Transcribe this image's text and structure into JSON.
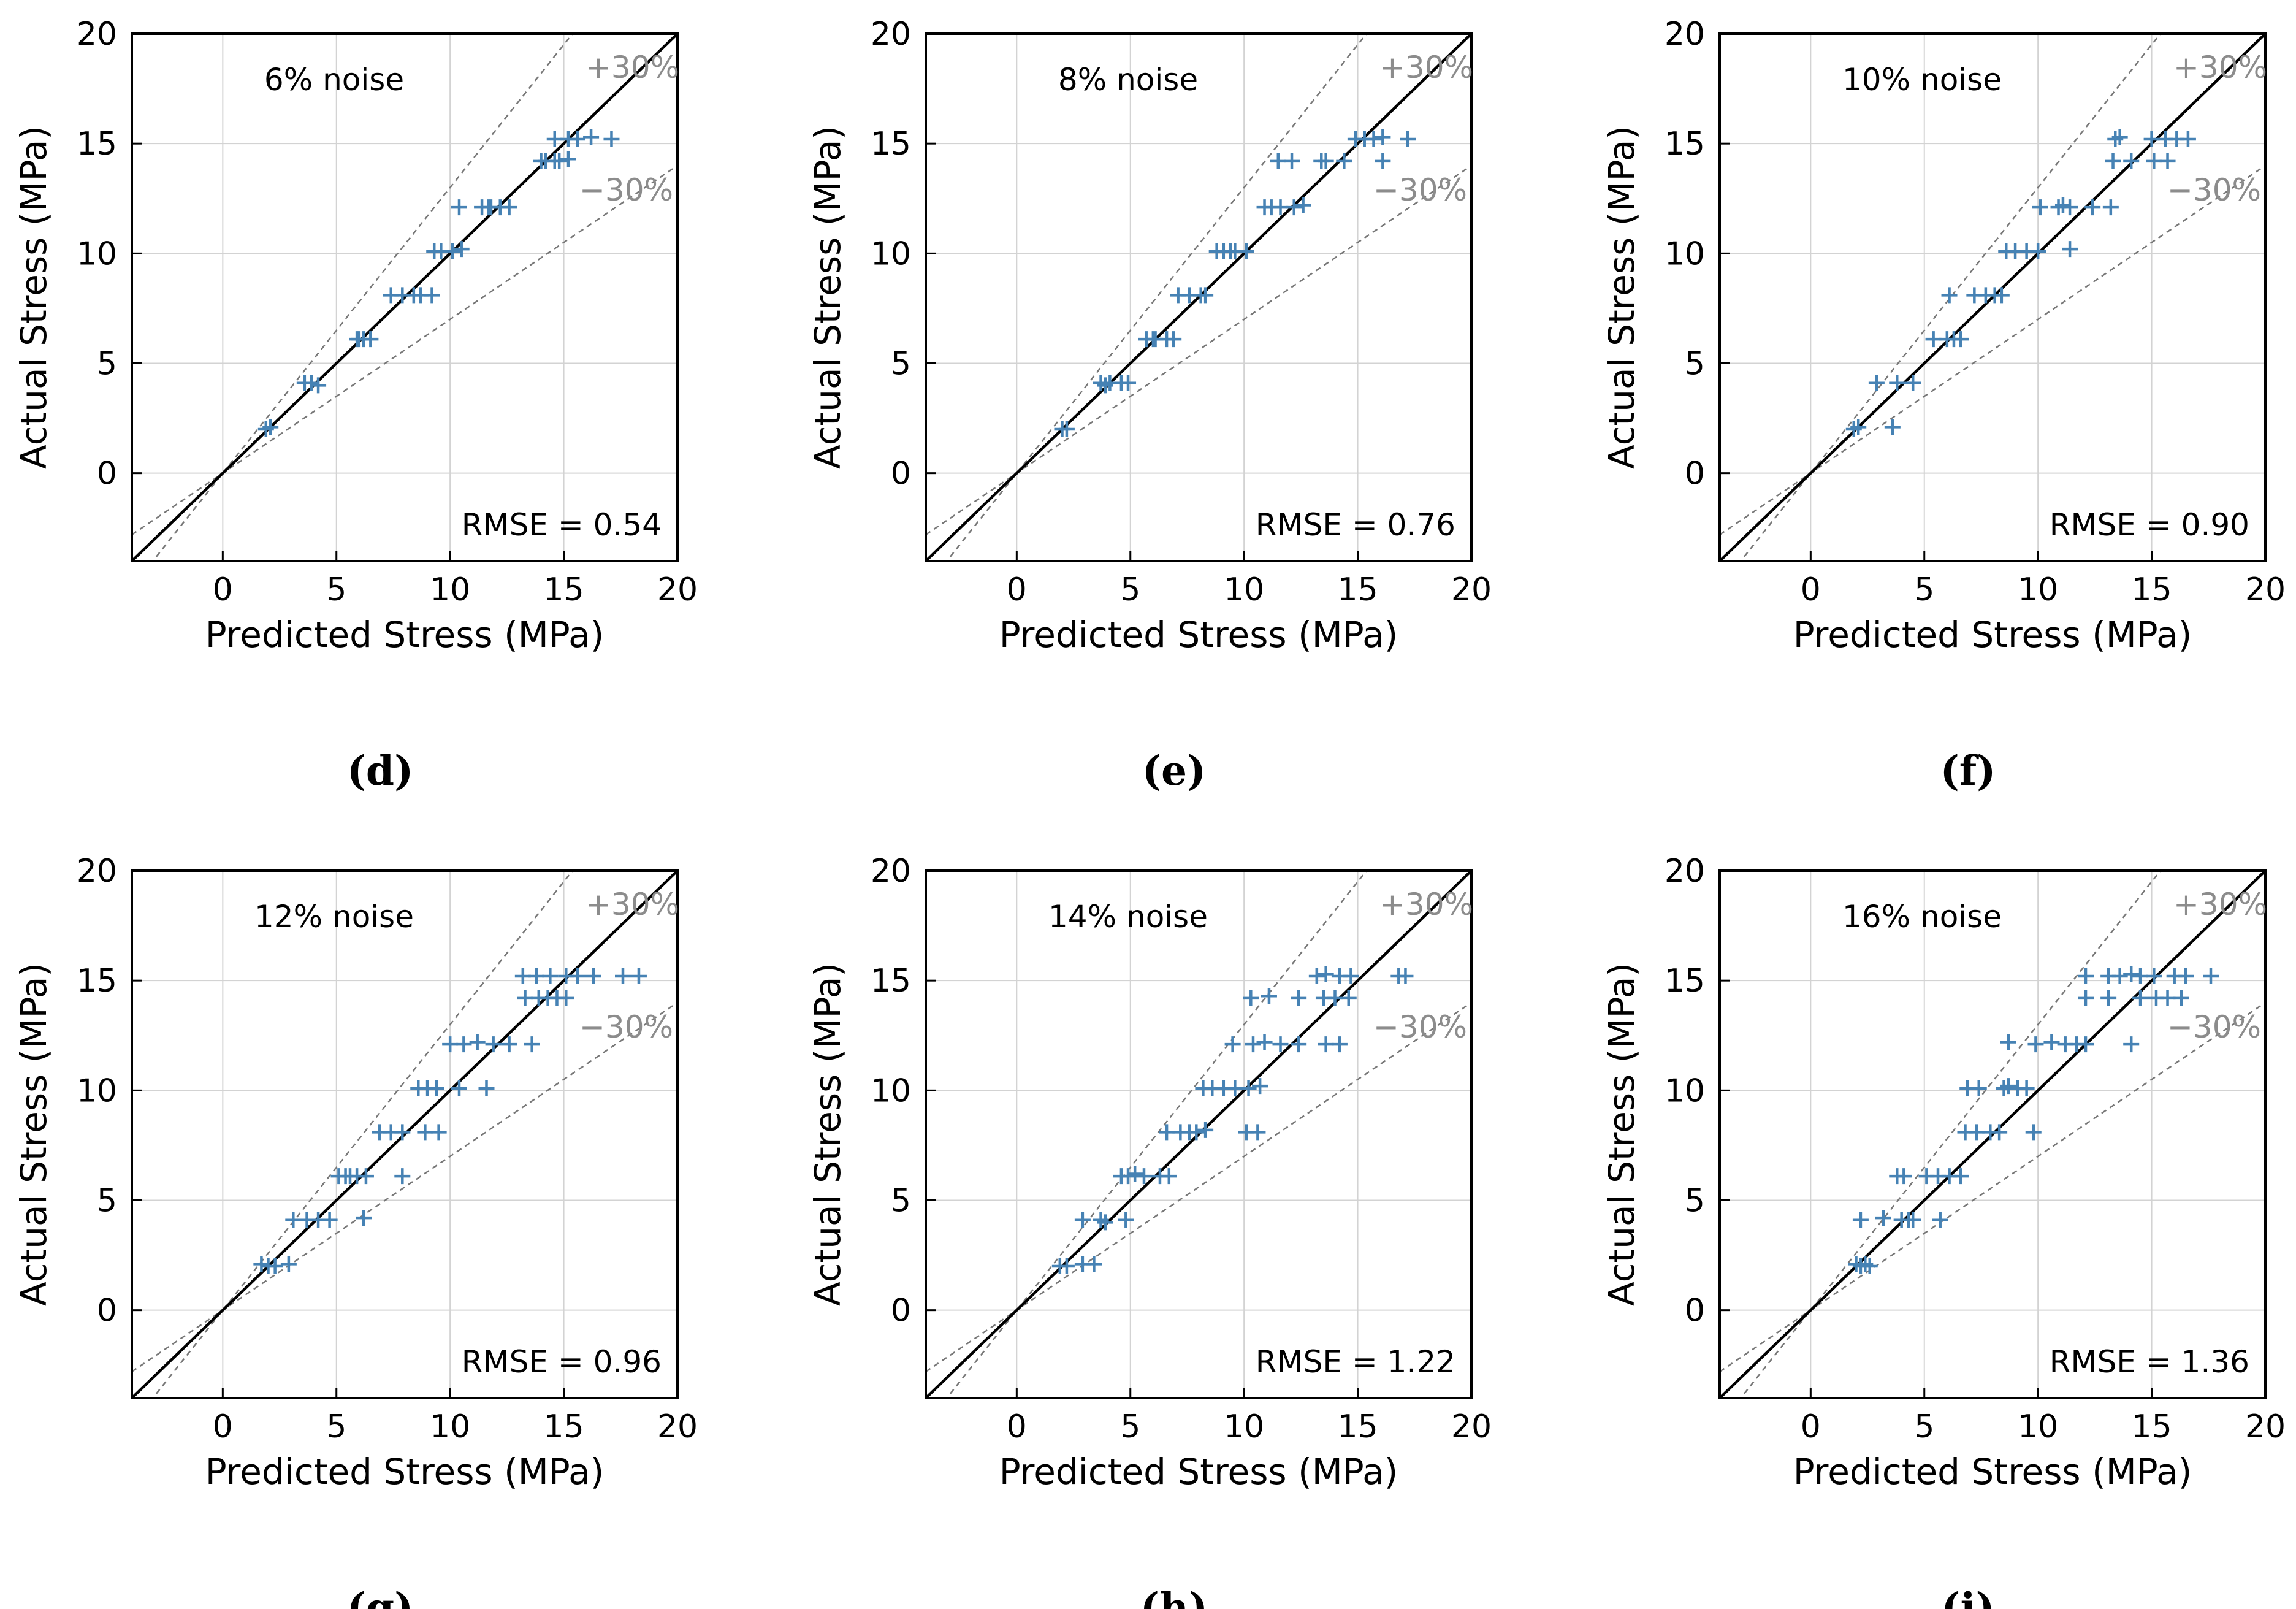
{
  "colors": {
    "marker": "#4682b4",
    "band": "#777777",
    "band_label": "#8c8c8c",
    "axis": "#000000",
    "grid": "#d3d3d3"
  },
  "chart_data": [
    {
      "type": "scatter",
      "label": "(d)",
      "title": "6% noise",
      "rmse": "RMSE = 0.54",
      "xlabel": "Predicted Stress (MPa)",
      "ylabel": "Actual Stress (MPa)",
      "xlim": [
        -4,
        20
      ],
      "ylim": [
        -4,
        20
      ],
      "xticks": [
        "0",
        "5",
        "10",
        "15",
        "20"
      ],
      "yticks": [
        "0",
        "5",
        "10",
        "15",
        "20"
      ],
      "grid": true,
      "band_labels": [
        "+30%",
        "−30%"
      ],
      "points": [
        [
          1.9,
          2.0
        ],
        [
          2.1,
          2.1
        ],
        [
          3.6,
          4.1
        ],
        [
          3.9,
          4.1
        ],
        [
          4.2,
          4.0
        ],
        [
          5.9,
          6.1
        ],
        [
          6.0,
          6.1
        ],
        [
          6.2,
          6.1
        ],
        [
          6.5,
          6.1
        ],
        [
          7.4,
          8.1
        ],
        [
          7.9,
          8.1
        ],
        [
          8.4,
          8.1
        ],
        [
          8.7,
          8.1
        ],
        [
          9.2,
          8.1
        ],
        [
          9.3,
          10.1
        ],
        [
          9.6,
          10.1
        ],
        [
          10.1,
          10.1
        ],
        [
          10.5,
          10.2
        ],
        [
          10.4,
          12.1
        ],
        [
          11.4,
          12.1
        ],
        [
          11.7,
          12.1
        ],
        [
          11.8,
          12.1
        ],
        [
          12.2,
          12.1
        ],
        [
          12.6,
          12.1
        ],
        [
          14.0,
          14.2
        ],
        [
          14.2,
          14.2
        ],
        [
          14.6,
          14.2
        ],
        [
          14.8,
          14.2
        ],
        [
          15.2,
          14.3
        ],
        [
          14.6,
          15.2
        ],
        [
          15.2,
          15.2
        ],
        [
          15.6,
          15.2
        ],
        [
          16.2,
          15.3
        ],
        [
          17.1,
          15.2
        ]
      ]
    },
    {
      "type": "scatter",
      "label": "(e)",
      "title": "8% noise",
      "rmse": "RMSE = 0.76",
      "xlabel": "Predicted Stress (MPa)",
      "ylabel": "Actual Stress (MPa)",
      "xlim": [
        -4,
        20
      ],
      "ylim": [
        -4,
        20
      ],
      "xticks": [
        "0",
        "5",
        "10",
        "15",
        "20"
      ],
      "yticks": [
        "0",
        "5",
        "10",
        "15",
        "20"
      ],
      "grid": true,
      "band_labels": [
        "+30%",
        "−30%"
      ],
      "points": [
        [
          2.0,
          2.0
        ],
        [
          2.2,
          2.0
        ],
        [
          3.7,
          4.1
        ],
        [
          3.9,
          4.0
        ],
        [
          4.1,
          4.1
        ],
        [
          4.6,
          4.1
        ],
        [
          4.9,
          4.1
        ],
        [
          5.7,
          6.1
        ],
        [
          6.0,
          6.1
        ],
        [
          6.1,
          6.1
        ],
        [
          6.6,
          6.1
        ],
        [
          6.9,
          6.1
        ],
        [
          7.1,
          8.1
        ],
        [
          7.6,
          8.1
        ],
        [
          8.1,
          8.1
        ],
        [
          8.3,
          8.1
        ],
        [
          8.8,
          10.1
        ],
        [
          9.1,
          10.1
        ],
        [
          9.4,
          10.1
        ],
        [
          9.6,
          10.1
        ],
        [
          10.1,
          10.1
        ],
        [
          10.9,
          12.1
        ],
        [
          11.2,
          12.1
        ],
        [
          11.6,
          12.1
        ],
        [
          12.2,
          12.1
        ],
        [
          12.6,
          12.2
        ],
        [
          11.5,
          14.2
        ],
        [
          12.1,
          14.2
        ],
        [
          13.4,
          14.2
        ],
        [
          13.6,
          14.2
        ],
        [
          14.4,
          14.2
        ],
        [
          16.1,
          14.2
        ],
        [
          14.9,
          15.2
        ],
        [
          15.3,
          15.2
        ],
        [
          15.7,
          15.2
        ],
        [
          16.1,
          15.3
        ],
        [
          17.2,
          15.2
        ]
      ]
    },
    {
      "type": "scatter",
      "label": "(f)",
      "title": "10% noise",
      "rmse": "RMSE = 0.90",
      "xlabel": "Predicted Stress (MPa)",
      "ylabel": "Actual Stress (MPa)",
      "xlim": [
        -4,
        20
      ],
      "ylim": [
        -4,
        20
      ],
      "xticks": [
        "0",
        "5",
        "10",
        "15",
        "20"
      ],
      "yticks": [
        "0",
        "5",
        "10",
        "15",
        "20"
      ],
      "grid": true,
      "band_labels": [
        "+30%",
        "−30%"
      ],
      "points": [
        [
          1.9,
          2.0
        ],
        [
          2.1,
          2.1
        ],
        [
          3.6,
          2.1
        ],
        [
          2.9,
          4.1
        ],
        [
          3.8,
          4.1
        ],
        [
          4.5,
          4.1
        ],
        [
          5.4,
          6.1
        ],
        [
          6.0,
          6.1
        ],
        [
          6.3,
          6.1
        ],
        [
          6.6,
          6.1
        ],
        [
          6.1,
          8.1
        ],
        [
          7.2,
          8.1
        ],
        [
          7.7,
          8.1
        ],
        [
          8.1,
          8.1
        ],
        [
          8.4,
          8.1
        ],
        [
          8.6,
          10.1
        ],
        [
          9.0,
          10.1
        ],
        [
          9.5,
          10.1
        ],
        [
          10.0,
          10.1
        ],
        [
          11.4,
          10.2
        ],
        [
          10.1,
          12.1
        ],
        [
          10.9,
          12.1
        ],
        [
          11.1,
          12.2
        ],
        [
          11.4,
          12.1
        ],
        [
          12.4,
          12.1
        ],
        [
          13.2,
          12.1
        ],
        [
          13.3,
          14.2
        ],
        [
          14.1,
          14.2
        ],
        [
          15.1,
          14.2
        ],
        [
          15.7,
          14.2
        ],
        [
          13.4,
          15.2
        ],
        [
          13.6,
          15.3
        ],
        [
          15.0,
          15.2
        ],
        [
          15.6,
          15.2
        ],
        [
          16.1,
          15.2
        ],
        [
          16.6,
          15.2
        ]
      ]
    },
    {
      "type": "scatter",
      "label": "(g)",
      "title": "12% noise",
      "rmse": "RMSE = 0.96",
      "xlabel": "Predicted Stress (MPa)",
      "ylabel": "Actual Stress (MPa)",
      "xlim": [
        -4,
        20
      ],
      "ylim": [
        -4,
        20
      ],
      "xticks": [
        "0",
        "5",
        "10",
        "15",
        "20"
      ],
      "yticks": [
        "0",
        "5",
        "10",
        "15",
        "20"
      ],
      "grid": true,
      "band_labels": [
        "+30%",
        "−30%"
      ],
      "points": [
        [
          1.7,
          2.1
        ],
        [
          2.0,
          2.0
        ],
        [
          2.3,
          2.0
        ],
        [
          2.9,
          2.1
        ],
        [
          3.1,
          4.1
        ],
        [
          3.7,
          4.1
        ],
        [
          4.2,
          4.1
        ],
        [
          4.7,
          4.1
        ],
        [
          6.2,
          4.2
        ],
        [
          5.1,
          6.1
        ],
        [
          5.4,
          6.1
        ],
        [
          5.6,
          6.1
        ],
        [
          5.9,
          6.1
        ],
        [
          6.3,
          6.1
        ],
        [
          7.9,
          6.1
        ],
        [
          6.9,
          8.1
        ],
        [
          7.4,
          8.1
        ],
        [
          7.9,
          8.1
        ],
        [
          8.9,
          8.1
        ],
        [
          9.5,
          8.1
        ],
        [
          8.6,
          10.1
        ],
        [
          9.0,
          10.1
        ],
        [
          9.4,
          10.1
        ],
        [
          10.4,
          10.1
        ],
        [
          11.6,
          10.1
        ],
        [
          10.0,
          12.1
        ],
        [
          10.6,
          12.1
        ],
        [
          11.2,
          12.2
        ],
        [
          11.9,
          12.1
        ],
        [
          12.6,
          12.1
        ],
        [
          13.6,
          12.1
        ],
        [
          13.3,
          14.2
        ],
        [
          13.9,
          14.2
        ],
        [
          14.3,
          14.2
        ],
        [
          14.7,
          14.2
        ],
        [
          15.1,
          14.2
        ],
        [
          13.2,
          15.2
        ],
        [
          13.8,
          15.2
        ],
        [
          14.4,
          15.2
        ],
        [
          15.1,
          15.2
        ],
        [
          15.6,
          15.2
        ],
        [
          16.3,
          15.2
        ],
        [
          17.6,
          15.2
        ],
        [
          18.3,
          15.2
        ]
      ]
    },
    {
      "type": "scatter",
      "label": "(h)",
      "title": "14% noise",
      "rmse": "RMSE = 1.22",
      "xlabel": "Predicted Stress (MPa)",
      "ylabel": "Actual Stress (MPa)",
      "xlim": [
        -4,
        20
      ],
      "ylim": [
        -4,
        20
      ],
      "xticks": [
        "0",
        "5",
        "10",
        "15",
        "20"
      ],
      "yticks": [
        "0",
        "5",
        "10",
        "15",
        "20"
      ],
      "grid": true,
      "band_labels": [
        "+30%",
        "−30%"
      ],
      "points": [
        [
          1.9,
          2.0
        ],
        [
          2.2,
          2.0
        ],
        [
          2.9,
          2.1
        ],
        [
          3.4,
          2.1
        ],
        [
          2.9,
          4.1
        ],
        [
          3.7,
          4.1
        ],
        [
          3.9,
          4.0
        ],
        [
          4.8,
          4.1
        ],
        [
          4.6,
          6.1
        ],
        [
          4.9,
          6.1
        ],
        [
          5.2,
          6.2
        ],
        [
          5.6,
          6.1
        ],
        [
          6.3,
          6.1
        ],
        [
          6.7,
          6.1
        ],
        [
          6.6,
          8.1
        ],
        [
          7.2,
          8.1
        ],
        [
          7.6,
          8.1
        ],
        [
          7.9,
          8.1
        ],
        [
          8.3,
          8.2
        ],
        [
          10.1,
          8.1
        ],
        [
          10.6,
          8.1
        ],
        [
          8.2,
          10.1
        ],
        [
          8.6,
          10.1
        ],
        [
          9.1,
          10.1
        ],
        [
          9.6,
          10.1
        ],
        [
          10.2,
          10.1
        ],
        [
          10.7,
          10.2
        ],
        [
          9.5,
          12.1
        ],
        [
          10.4,
          12.1
        ],
        [
          10.9,
          12.2
        ],
        [
          11.6,
          12.1
        ],
        [
          12.4,
          12.1
        ],
        [
          13.6,
          12.1
        ],
        [
          14.2,
          12.1
        ],
        [
          10.3,
          14.2
        ],
        [
          11.1,
          14.3
        ],
        [
          12.4,
          14.2
        ],
        [
          13.5,
          14.2
        ],
        [
          14.0,
          14.2
        ],
        [
          14.6,
          14.2
        ],
        [
          13.2,
          15.2
        ],
        [
          13.6,
          15.3
        ],
        [
          14.2,
          15.2
        ],
        [
          14.7,
          15.2
        ],
        [
          16.8,
          15.2
        ],
        [
          17.1,
          15.2
        ]
      ]
    },
    {
      "type": "scatter",
      "label": "(i)",
      "title": "16% noise",
      "rmse": "RMSE = 1.36",
      "xlabel": "Predicted Stress (MPa)",
      "ylabel": "Actual Stress (MPa)",
      "xlim": [
        -4,
        20
      ],
      "ylim": [
        -4,
        20
      ],
      "xticks": [
        "0",
        "5",
        "10",
        "15",
        "20"
      ],
      "yticks": [
        "0",
        "5",
        "10",
        "15",
        "20"
      ],
      "grid": true,
      "band_labels": [
        "+30%",
        "−30%"
      ],
      "points": [
        [
          2.0,
          2.1
        ],
        [
          2.2,
          2.0
        ],
        [
          2.4,
          2.1
        ],
        [
          2.6,
          2.0
        ],
        [
          2.2,
          4.1
        ],
        [
          3.2,
          4.2
        ],
        [
          4.0,
          4.1
        ],
        [
          4.3,
          4.1
        ],
        [
          4.5,
          4.1
        ],
        [
          5.7,
          4.1
        ],
        [
          3.8,
          6.1
        ],
        [
          4.1,
          6.1
        ],
        [
          5.1,
          6.1
        ],
        [
          5.6,
          6.1
        ],
        [
          6.1,
          6.1
        ],
        [
          6.6,
          6.1
        ],
        [
          6.8,
          8.1
        ],
        [
          7.3,
          8.1
        ],
        [
          7.9,
          8.1
        ],
        [
          8.3,
          8.1
        ],
        [
          9.8,
          8.1
        ],
        [
          6.9,
          10.1
        ],
        [
          7.4,
          10.1
        ],
        [
          8.5,
          10.1
        ],
        [
          8.7,
          10.2
        ],
        [
          9.1,
          10.1
        ],
        [
          9.5,
          10.1
        ],
        [
          8.7,
          12.2
        ],
        [
          9.9,
          12.1
        ],
        [
          10.6,
          12.2
        ],
        [
          11.2,
          12.1
        ],
        [
          11.7,
          12.1
        ],
        [
          12.1,
          12.1
        ],
        [
          12.1,
          14.2
        ],
        [
          13.1,
          14.2
        ],
        [
          14.5,
          14.2
        ],
        [
          15.2,
          14.2
        ],
        [
          15.7,
          14.2
        ],
        [
          16.3,
          14.2
        ],
        [
          14.1,
          12.1
        ],
        [
          12.1,
          15.2
        ],
        [
          13.1,
          15.2
        ],
        [
          13.6,
          15.2
        ],
        [
          14.1,
          15.3
        ],
        [
          14.5,
          15.2
        ],
        [
          15.1,
          15.2
        ],
        [
          16.0,
          15.2
        ],
        [
          16.5,
          15.2
        ],
        [
          17.6,
          15.2
        ]
      ]
    }
  ]
}
